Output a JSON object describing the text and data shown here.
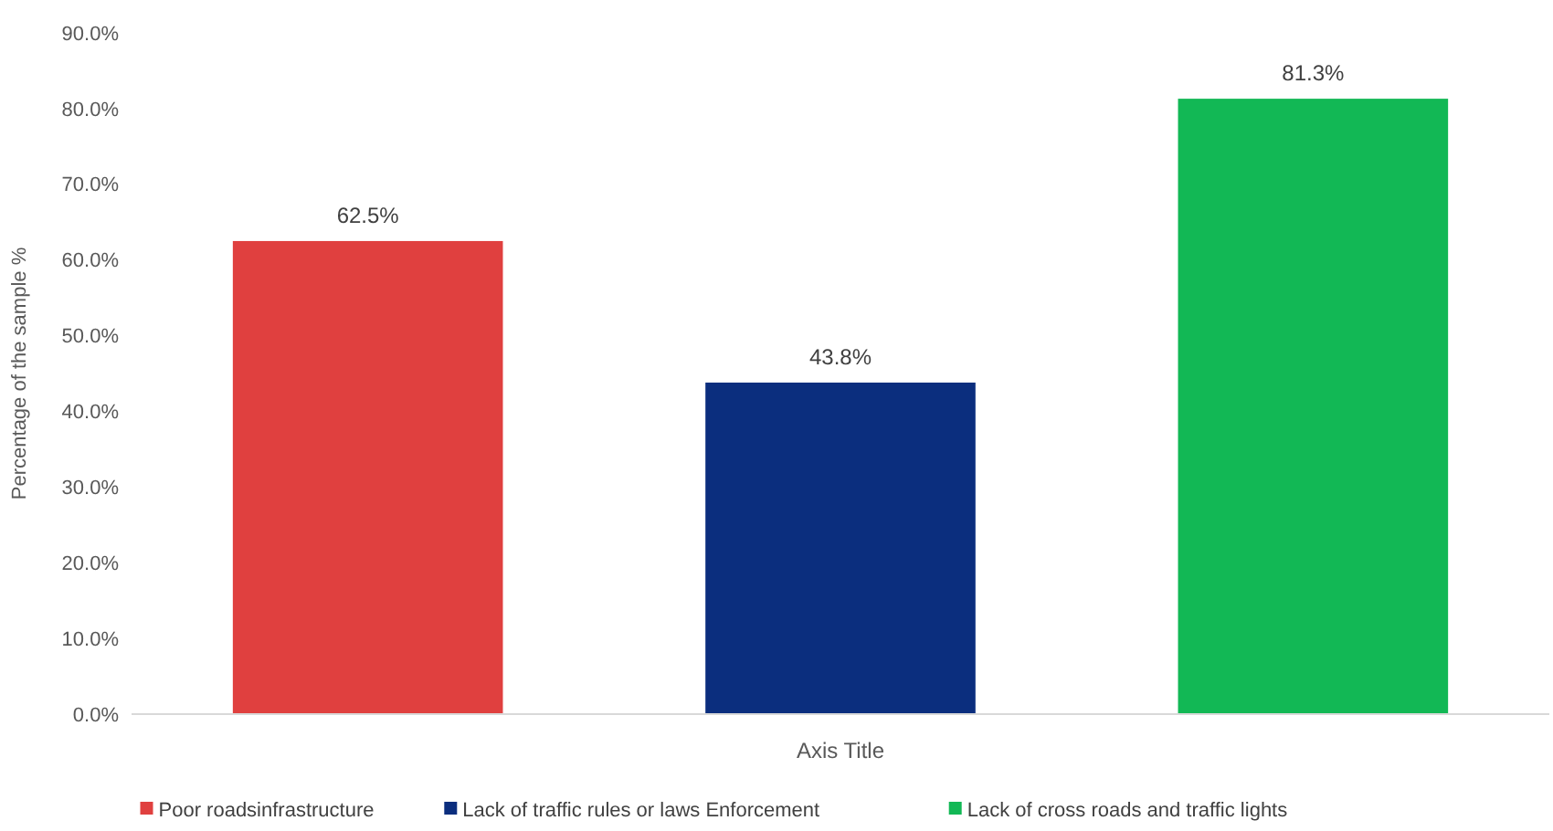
{
  "chart_data": {
    "type": "bar",
    "xlabel": "Axis Title",
    "ylabel": "Percentage of the sample %",
    "categories": [
      null
    ],
    "series": [
      {
        "name": "Poor roadsinfrastructure",
        "color": "#e0403f",
        "values": [
          62.5
        ],
        "value_labels": [
          "62.5%"
        ]
      },
      {
        "name": "Lack of traffic rules  or laws Enforcement",
        "color": "#0b2e7e",
        "values": [
          43.8
        ],
        "value_labels": [
          "43.8%"
        ]
      },
      {
        "name": "Lack of  cross roads and traffic lights",
        "color": "#12b855",
        "values": [
          81.3
        ],
        "value_labels": [
          "81.3%"
        ]
      }
    ],
    "ylim": [
      0,
      90
    ],
    "yticks": [
      {
        "value": 0,
        "label": "0.0%"
      },
      {
        "value": 10,
        "label": "10.0%"
      },
      {
        "value": 20,
        "label": "20.0%"
      },
      {
        "value": 30,
        "label": "30.0%"
      },
      {
        "value": 40,
        "label": "40.0%"
      },
      {
        "value": 50,
        "label": "50.0%"
      },
      {
        "value": 60,
        "label": "60.0%"
      },
      {
        "value": 70,
        "label": "70.0%"
      },
      {
        "value": 80,
        "label": "80.0%"
      },
      {
        "value": 90,
        "label": "90.0%"
      }
    ],
    "grid": false,
    "legend": "bottom"
  }
}
